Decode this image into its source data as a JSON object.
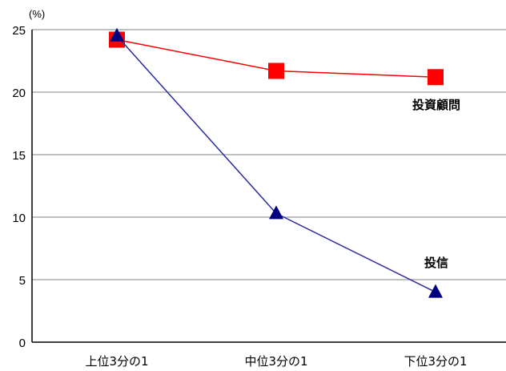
{
  "chart_data": {
    "type": "line",
    "unit_label": "(%)",
    "categories": [
      "上位3分の1",
      "中位3分の1",
      "下位3分の1"
    ],
    "y_ticks": [
      0,
      5,
      10,
      15,
      20,
      25
    ],
    "ylim": [
      0,
      25
    ],
    "grid": true,
    "legend": "inline labels near series ends",
    "series": [
      {
        "name": "投資顧問",
        "values": [
          24.2,
          21.7,
          21.2
        ],
        "color": "#ff0000",
        "line_color": "#ff0000",
        "marker": "square"
      },
      {
        "name": "投信",
        "values": [
          24.5,
          10.3,
          4.0
        ],
        "color": "#000080",
        "line_color": "#2a2aa0",
        "marker": "triangle"
      }
    ]
  }
}
